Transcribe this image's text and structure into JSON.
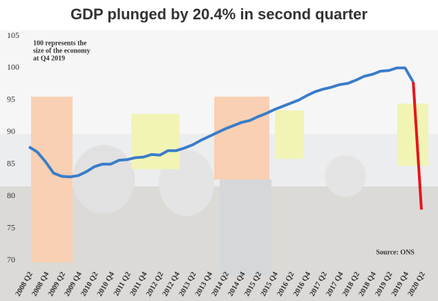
{
  "chart_data": {
    "type": "line",
    "title": "GDP plunged by 20.4% in second quarter",
    "annotation": [
      "100 represents the",
      "size of the economy",
      "at Q4 2019"
    ],
    "source": "Source: ONS",
    "categories": [
      "2008 Q2",
      null,
      "2008 Q4",
      null,
      "2009 Q2",
      null,
      "2009 Q4",
      null,
      "2010 Q2",
      null,
      "2010 Q4",
      null,
      "2011 Q2",
      null,
      "2011 Q4",
      null,
      "2012 Q2",
      null,
      "2012 Q4",
      null,
      "2013 Q2",
      null,
      "2013 Q4",
      null,
      "2014 Q2",
      null,
      "2014 Q4",
      null,
      "2015 Q2",
      null,
      "2015 Q4",
      null,
      "2016 Q2",
      null,
      "2016 Q4",
      null,
      "2017 Q2",
      null,
      "2017 Q4",
      null,
      "2018 Q2",
      null,
      "2018 Q4",
      null,
      "2019 Q2",
      null,
      "2019 Q4",
      null,
      "2020 Q2"
    ],
    "series": [
      {
        "color": "#3a7cc9",
        "values": [
          87.7,
          86.9,
          85.4,
          83.6,
          83.1,
          83.0,
          83.2,
          83.8,
          84.6,
          85.0,
          85.0,
          85.6,
          85.7,
          86.0,
          86.1,
          86.5,
          86.4,
          87.1,
          87.1,
          87.5,
          88.0,
          88.7,
          89.3,
          89.9,
          90.5,
          91.0,
          91.5,
          91.8,
          92.4,
          92.9,
          93.5,
          94.0,
          94.5,
          95.0,
          95.7,
          96.3,
          96.7,
          97.0,
          97.4,
          97.6,
          98.1,
          98.7,
          99.0,
          99.5,
          99.6,
          100.0,
          100.0,
          97.8,
          null
        ]
      },
      {
        "color": "#e8141b",
        "values": [
          null,
          null,
          null,
          null,
          null,
          null,
          null,
          null,
          null,
          null,
          null,
          null,
          null,
          null,
          null,
          null,
          null,
          null,
          null,
          null,
          null,
          null,
          null,
          null,
          null,
          null,
          null,
          null,
          null,
          null,
          null,
          null,
          null,
          null,
          null,
          null,
          null,
          null,
          null,
          null,
          null,
          null,
          null,
          null,
          null,
          null,
          null,
          97.8,
          77.9
        ]
      }
    ],
    "ylim": [
      70,
      105
    ],
    "yticks": [
      70,
      75,
      80,
      85,
      90,
      95,
      100,
      105
    ],
    "grid": false
  }
}
